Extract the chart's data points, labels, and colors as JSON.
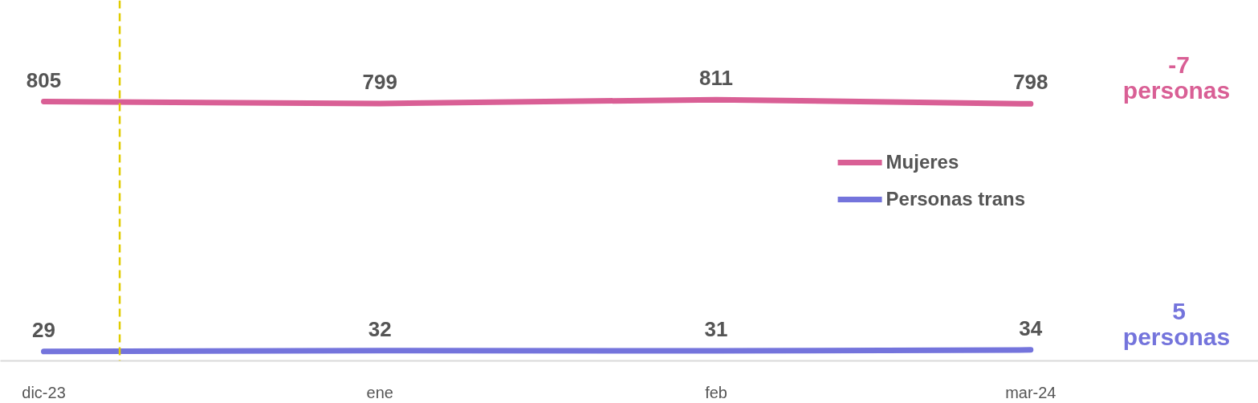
{
  "chart_data": {
    "type": "line",
    "x": [
      "2023-12",
      "2024-01",
      "2024-02",
      "2024-03"
    ],
    "xlim": [
      "2023-11-27",
      "2024-03-22"
    ],
    "xticks": [
      {
        "value": "2023-12",
        "label": "dic-23"
      },
      {
        "value": "2024-01",
        "label": "ene"
      },
      {
        "value": "2024-02",
        "label": "feb"
      },
      {
        "value": "2024-03",
        "label": "mar-24"
      }
    ],
    "series": [
      {
        "name": "Mujeres",
        "color": "#d95f95",
        "values": [
          805,
          799,
          811,
          798
        ]
      },
      {
        "name": "Personas trans",
        "color": "#7474dc",
        "values": [
          29,
          32,
          31,
          34
        ]
      }
    ],
    "data_labels": true,
    "ref_lines": [
      {
        "axis": "x",
        "value": "2023-12-08",
        "color": "#e0cc00",
        "line_style": "dashed"
      }
    ],
    "annotations": [
      "-7 personas",
      "5 personas"
    ],
    "legend": "right",
    "grid": false,
    "tick_labels": "x"
  }
}
